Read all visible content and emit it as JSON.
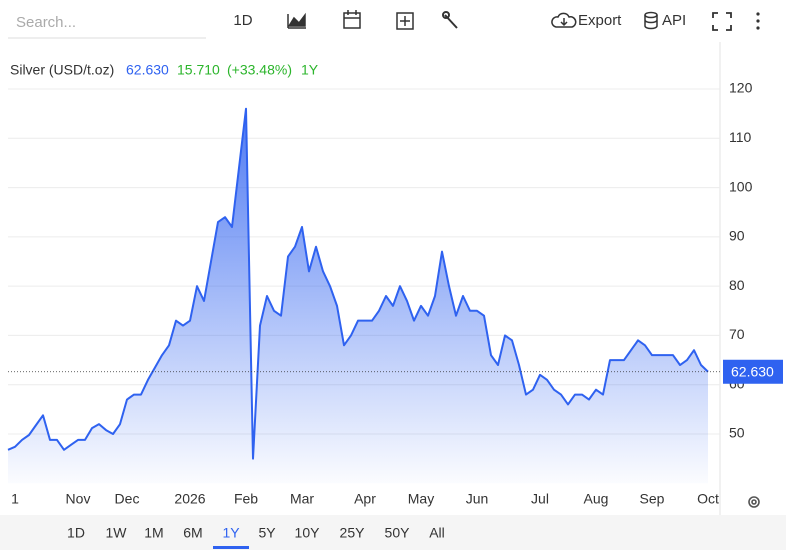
{
  "toolbar": {
    "search_placeholder": "Search...",
    "interval": "1D",
    "export": "Export",
    "api": "API"
  },
  "range_buttons": [
    "1D",
    "1W",
    "1M",
    "6M",
    "1Y",
    "5Y",
    "10Y",
    "25Y",
    "50Y",
    "All"
  ],
  "selected_range": 4,
  "chart_data": {
    "type": "area",
    "title": "Silver (USD/t.oz)",
    "current_price": {
      "value": 62.63,
      "label": "62.630"
    },
    "change": "15.710",
    "change_percent": "(+33.48%)",
    "period": "1Y",
    "categories": [
      null,
      "1",
      null,
      null,
      null,
      null,
      null,
      null,
      null,
      null,
      "Nov",
      null,
      null,
      null,
      null,
      null,
      null,
      "Dec",
      null,
      null,
      null,
      null,
      null,
      null,
      null,
      null,
      "2026",
      null,
      null,
      null,
      null,
      null,
      null,
      null,
      "Feb",
      null,
      null,
      null,
      null,
      null,
      null,
      null,
      "Mar",
      null,
      null,
      null,
      null,
      null,
      null,
      null,
      null,
      "Apr",
      null,
      null,
      null,
      null,
      null,
      null,
      null,
      "May",
      null,
      null,
      null,
      null,
      null,
      null,
      null,
      "Jun",
      null,
      null,
      null,
      null,
      null,
      null,
      null,
      null,
      "Jul",
      null,
      null,
      null,
      null,
      null,
      null,
      null,
      "Aug",
      null,
      null,
      null,
      null,
      null,
      null,
      null,
      "Sep",
      null,
      null,
      null,
      null,
      null,
      null,
      null,
      "Oct"
    ],
    "values": [
      46.8,
      47.4,
      48.8,
      49.8,
      51.8,
      53.8,
      48.8,
      48.8,
      46.8,
      47.8,
      48.8,
      48.8,
      51.2,
      52,
      50.8,
      50,
      52,
      57,
      58,
      58,
      61,
      63.5,
      66,
      68,
      73,
      72,
      73,
      80,
      77,
      85,
      93,
      94,
      92,
      104,
      116,
      45,
      72,
      78,
      75,
      74,
      86,
      88,
      92,
      83,
      88,
      83,
      80,
      76,
      68,
      70,
      73,
      73,
      73,
      75,
      78,
      76,
      80,
      77,
      73,
      76,
      74,
      78,
      87,
      80,
      74,
      78,
      75,
      75,
      74,
      66,
      64,
      70,
      69,
      64,
      58,
      59,
      62,
      61,
      59,
      58,
      56,
      58,
      58,
      57,
      59,
      58,
      65,
      65,
      65,
      67,
      69,
      68,
      66,
      66,
      66,
      66,
      64,
      65,
      67,
      64,
      62.63
    ],
    "color": "#2f62f0",
    "ylim": [
      40,
      130
    ],
    "yticks": [
      50,
      60,
      70,
      80,
      90,
      100,
      110,
      120
    ],
    "grid": true
  }
}
